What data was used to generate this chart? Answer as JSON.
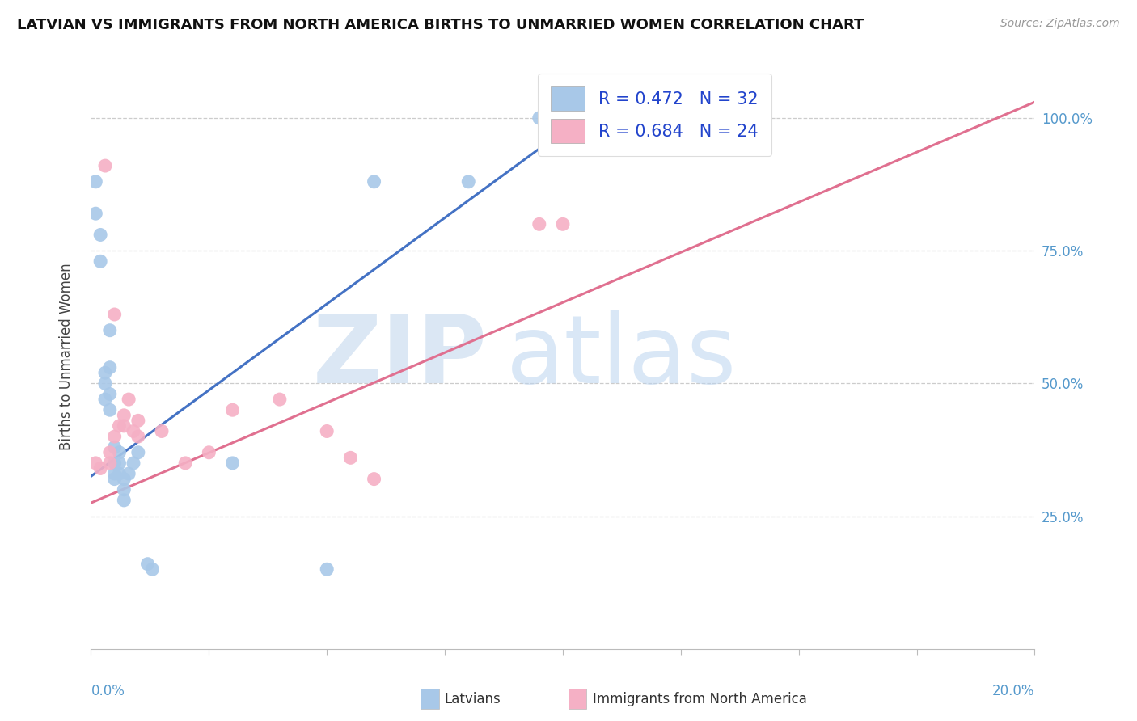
{
  "title": "LATVIAN VS IMMIGRANTS FROM NORTH AMERICA BIRTHS TO UNMARRIED WOMEN CORRELATION CHART",
  "source": "Source: ZipAtlas.com",
  "ylabel": "Births to Unmarried Women",
  "ytick_values": [
    0.25,
    0.5,
    0.75,
    1.0
  ],
  "ytick_labels": [
    "25.0%",
    "50.0%",
    "75.0%",
    "100.0%"
  ],
  "xlim": [
    0.0,
    0.2
  ],
  "ylim": [
    0.0,
    1.1
  ],
  "legend_r_latvian": "R = 0.472",
  "legend_n_latvian": "N = 32",
  "legend_r_immigrant": "R = 0.684",
  "legend_n_immigrant": "N = 24",
  "latvian_color": "#a8c8e8",
  "latvian_line_color": "#4472c4",
  "immigrant_color": "#f5b0c5",
  "immigrant_line_color": "#e07090",
  "legend_text_color": "#2244cc",
  "latvians_x": [
    0.001,
    0.001,
    0.002,
    0.002,
    0.003,
    0.003,
    0.003,
    0.004,
    0.004,
    0.004,
    0.004,
    0.005,
    0.005,
    0.005,
    0.005,
    0.006,
    0.006,
    0.006,
    0.007,
    0.007,
    0.007,
    0.008,
    0.009,
    0.01,
    0.012,
    0.013,
    0.03,
    0.05,
    0.06,
    0.08,
    0.095,
    0.1
  ],
  "latvians_y": [
    0.88,
    0.82,
    0.78,
    0.73,
    0.52,
    0.5,
    0.47,
    0.6,
    0.53,
    0.48,
    0.45,
    0.38,
    0.35,
    0.33,
    0.32,
    0.37,
    0.35,
    0.33,
    0.32,
    0.3,
    0.28,
    0.33,
    0.35,
    0.37,
    0.16,
    0.15,
    0.35,
    0.15,
    0.88,
    0.88,
    1.0,
    1.0
  ],
  "immigrants_x": [
    0.001,
    0.002,
    0.003,
    0.004,
    0.004,
    0.005,
    0.005,
    0.006,
    0.007,
    0.007,
    0.008,
    0.009,
    0.01,
    0.01,
    0.015,
    0.02,
    0.025,
    0.03,
    0.04,
    0.05,
    0.055,
    0.06,
    0.095,
    0.1
  ],
  "immigrants_y": [
    0.35,
    0.34,
    0.91,
    0.37,
    0.35,
    0.63,
    0.4,
    0.42,
    0.44,
    0.42,
    0.47,
    0.41,
    0.43,
    0.4,
    0.41,
    0.35,
    0.37,
    0.45,
    0.47,
    0.41,
    0.36,
    0.32,
    0.8,
    0.8
  ]
}
